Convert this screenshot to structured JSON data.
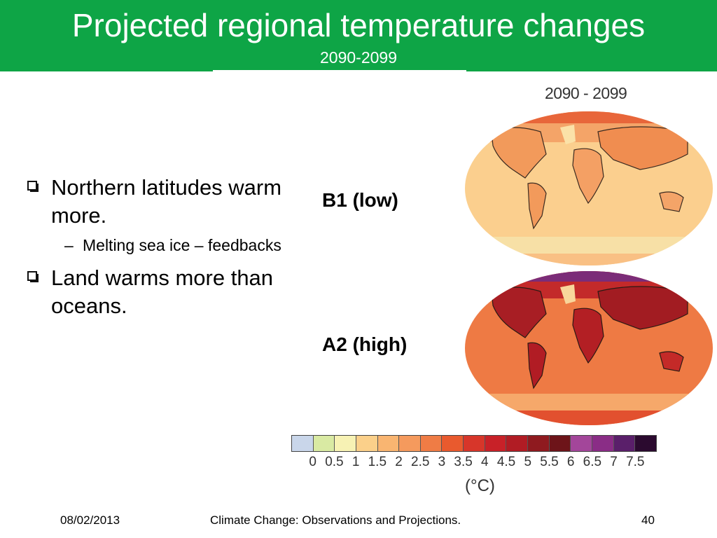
{
  "slide": {
    "title": "Projected regional temperature changes",
    "subtitle": "2090-2099"
  },
  "bullets": [
    {
      "level": 1,
      "text": "Northern latitudes warm more."
    },
    {
      "level": 2,
      "text": "Melting sea ice – feedbacks"
    },
    {
      "level": 1,
      "text": "Land warms more than oceans."
    }
  ],
  "scenarios": [
    {
      "label": "B1 (low)"
    },
    {
      "label": "A2 (high)"
    }
  ],
  "figure": {
    "period_label": "2090 - 2099",
    "colorbar": {
      "ticks": [
        "0",
        "0.5",
        "1",
        "1.5",
        "2",
        "2.5",
        "3",
        "3.5",
        "4",
        "4.5",
        "5",
        "5.5",
        "6",
        "6.5",
        "7",
        "7.5"
      ],
      "unit": "(°C)",
      "colors": [
        "#c9d6ea",
        "#d9eaa3",
        "#f7f2b4",
        "#fbd08a",
        "#f9b571",
        "#f59a5d",
        "#ef7c45",
        "#e95a2e",
        "#d7362a",
        "#c82128",
        "#b11c24",
        "#8f1a1f",
        "#6d1419",
        "#a3469a",
        "#8a2d86",
        "#5a1f6a",
        "#2b0a2f"
      ]
    }
  },
  "footer": {
    "date": "08/02/2013",
    "course": "Climate Change: Observations and Projections.",
    "page": "40"
  }
}
